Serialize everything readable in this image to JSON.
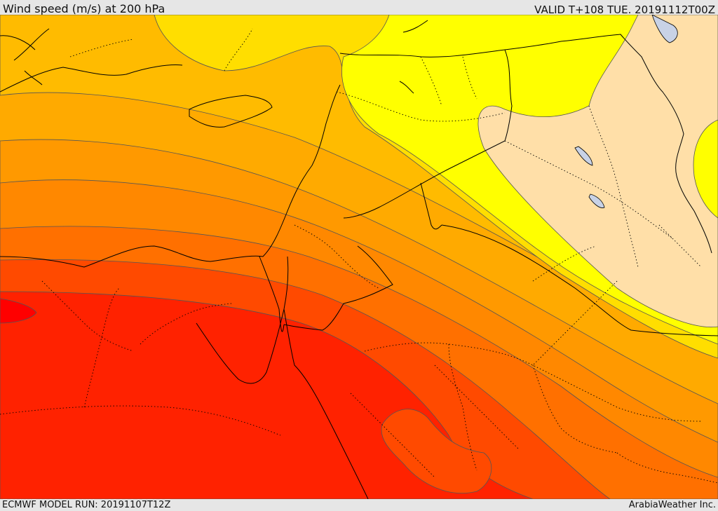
{
  "header": {
    "title": "Wind speed (m/s) at 200 hPa",
    "valid": "VALID T+108 TUE. 20191112T00Z"
  },
  "footer": {
    "model_run": "ECMWF MODEL RUN: 20191107T12Z",
    "credit": "ArabiaWeather Inc."
  },
  "map": {
    "fill_colors": {
      "weakest": "#ffdfa8",
      "very_light": "#ffff00",
      "light": "#ffde00",
      "medium_light": "#ffbb00",
      "medium": "#ff9900",
      "strong": "#ff7000",
      "stronger": "#ff4a00",
      "strongest": "#ff2200",
      "peak": "#ff0000"
    },
    "lake_color": "#c8d2e6",
    "contour_color": "#555555",
    "border_color": "#000000"
  }
}
